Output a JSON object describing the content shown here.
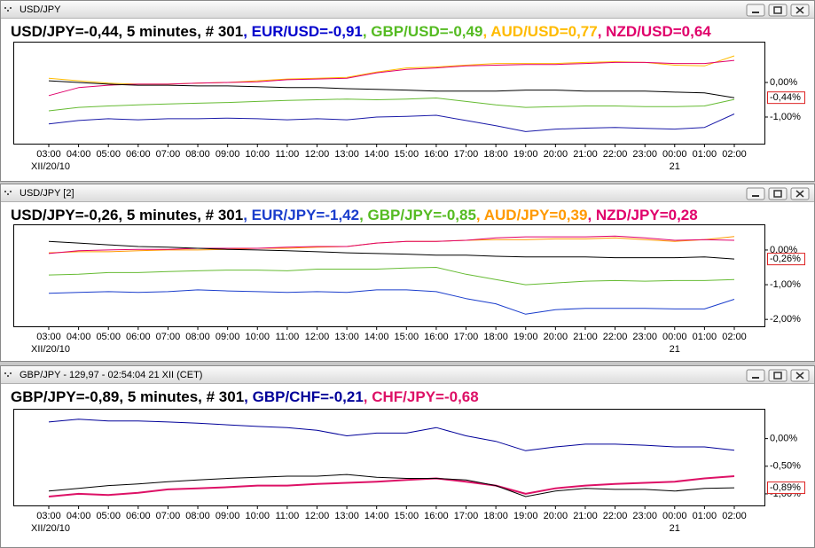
{
  "chart_data": [
    {
      "type": "line",
      "window_title": "USD/JPY",
      "title_parts": [
        {
          "text": "USD/JPY=-0,44, 5 minutes, # 301",
          "color": "#000000"
        },
        {
          "text": ", EUR/USD=-0,91",
          "color": "#0000cc"
        },
        {
          "text": ", GBP/USD=-0,49",
          "color": "#55bb22"
        },
        {
          "text": ", AUD/USD=0,77",
          "color": "#ffbb00"
        },
        {
          "text": ", NZD/USD=0,64",
          "color": "#e0006b"
        }
      ],
      "categories": [
        "03:00",
        "04:00",
        "05:00",
        "06:00",
        "07:00",
        "08:00",
        "09:00",
        "10:00",
        "11:00",
        "12:00",
        "13:00",
        "14:00",
        "15:00",
        "16:00",
        "17:00",
        "18:00",
        "19:00",
        "20:00",
        "21:00",
        "22:00",
        "23:00",
        "00:00",
        "01:00",
        "02:00"
      ],
      "x_sublabels": [
        "XII/20/10",
        null,
        null,
        null,
        null,
        null,
        null,
        null,
        null,
        null,
        null,
        null,
        null,
        null,
        null,
        null,
        null,
        null,
        null,
        null,
        null,
        "21",
        null,
        null
      ],
      "series": [
        {
          "color": "#000000",
          "width": 1,
          "values": [
            0.05,
            0.0,
            -0.05,
            -0.08,
            -0.08,
            -0.1,
            -0.1,
            -0.12,
            -0.15,
            -0.15,
            -0.18,
            -0.2,
            -0.22,
            -0.25,
            -0.25,
            -0.25,
            -0.22,
            -0.22,
            -0.25,
            -0.25,
            -0.25,
            -0.28,
            -0.3,
            -0.44
          ]
        },
        {
          "color": "#1a1aa8",
          "width": 1,
          "values": [
            -1.2,
            -1.1,
            -1.05,
            -1.08,
            -1.05,
            -1.05,
            -1.03,
            -1.05,
            -1.08,
            -1.05,
            -1.08,
            -1.0,
            -0.98,
            -0.95,
            -1.1,
            -1.25,
            -1.42,
            -1.35,
            -1.32,
            -1.3,
            -1.33,
            -1.35,
            -1.3,
            -0.91
          ]
        },
        {
          "color": "#66bb33",
          "width": 1,
          "values": [
            -0.82,
            -0.72,
            -0.68,
            -0.65,
            -0.62,
            -0.6,
            -0.58,
            -0.55,
            -0.52,
            -0.5,
            -0.48,
            -0.5,
            -0.48,
            -0.45,
            -0.55,
            -0.65,
            -0.72,
            -0.7,
            -0.68,
            -0.68,
            -0.7,
            -0.7,
            -0.68,
            -0.49
          ]
        },
        {
          "color": "#ffbb00",
          "width": 1,
          "values": [
            0.12,
            0.05,
            -0.02,
            -0.05,
            -0.05,
            -0.02,
            0.0,
            0.05,
            0.1,
            0.12,
            0.15,
            0.3,
            0.42,
            0.45,
            0.5,
            0.55,
            0.55,
            0.55,
            0.58,
            0.6,
            0.58,
            0.5,
            0.48,
            0.77
          ]
        },
        {
          "color": "#e0006b",
          "width": 1,
          "values": [
            -0.38,
            -0.15,
            -0.08,
            -0.05,
            -0.05,
            -0.02,
            0.0,
            0.02,
            0.08,
            0.1,
            0.12,
            0.28,
            0.38,
            0.42,
            0.48,
            0.5,
            0.52,
            0.52,
            0.55,
            0.58,
            0.58,
            0.55,
            0.55,
            0.64
          ]
        }
      ],
      "ylim": [
        -1.77,
        1.18
      ],
      "yticks": [
        {
          "value": 0,
          "label": "0,00%"
        },
        {
          "value": -1,
          "label": "-1,00%"
        }
      ],
      "last_label": "-0,44%"
    },
    {
      "type": "line",
      "window_title": "USD/JPY [2]",
      "title_parts": [
        {
          "text": "USD/JPY=-0,26, 5 minutes, # 301",
          "color": "#000000"
        },
        {
          "text": ", EUR/JPY=-1,42",
          "color": "#1a3dcc"
        },
        {
          "text": ", GBP/JPY=-0,85",
          "color": "#55bb22"
        },
        {
          "text": ", AUD/JPY=0,39",
          "color": "#ff9900"
        },
        {
          "text": ", NZD/JPY=0,28",
          "color": "#e0006b"
        }
      ],
      "categories": [
        "03:00",
        "04:00",
        "05:00",
        "06:00",
        "07:00",
        "08:00",
        "09:00",
        "10:00",
        "11:00",
        "12:00",
        "13:00",
        "14:00",
        "15:00",
        "16:00",
        "17:00",
        "18:00",
        "19:00",
        "20:00",
        "21:00",
        "22:00",
        "23:00",
        "00:00",
        "01:00",
        "02:00"
      ],
      "x_sublabels": [
        "XII/20/10",
        null,
        null,
        null,
        null,
        null,
        null,
        null,
        null,
        null,
        null,
        null,
        null,
        null,
        null,
        null,
        null,
        null,
        null,
        null,
        null,
        "21",
        null,
        null
      ],
      "series": [
        {
          "color": "#000000",
          "width": 1,
          "values": [
            0.25,
            0.2,
            0.15,
            0.1,
            0.08,
            0.05,
            0.02,
            0.0,
            -0.02,
            -0.05,
            -0.08,
            -0.1,
            -0.12,
            -0.15,
            -0.15,
            -0.18,
            -0.2,
            -0.2,
            -0.2,
            -0.22,
            -0.22,
            -0.22,
            -0.2,
            -0.26
          ]
        },
        {
          "color": "#1a3dcc",
          "width": 1,
          "values": [
            -1.25,
            -1.22,
            -1.2,
            -1.22,
            -1.2,
            -1.15,
            -1.18,
            -1.2,
            -1.22,
            -1.2,
            -1.22,
            -1.15,
            -1.15,
            -1.2,
            -1.4,
            -1.55,
            -1.85,
            -1.72,
            -1.68,
            -1.68,
            -1.68,
            -1.7,
            -1.7,
            -1.42
          ]
        },
        {
          "color": "#66bb33",
          "width": 1,
          "values": [
            -0.72,
            -0.7,
            -0.65,
            -0.65,
            -0.62,
            -0.6,
            -0.58,
            -0.58,
            -0.6,
            -0.55,
            -0.55,
            -0.55,
            -0.52,
            -0.5,
            -0.7,
            -0.85,
            -1.0,
            -0.95,
            -0.9,
            -0.88,
            -0.9,
            -0.88,
            -0.88,
            -0.85
          ]
        },
        {
          "color": "#ff9900",
          "width": 1,
          "values": [
            -0.08,
            -0.05,
            -0.05,
            -0.02,
            0.0,
            0.0,
            0.02,
            0.05,
            0.05,
            0.08,
            0.1,
            0.2,
            0.25,
            0.25,
            0.28,
            0.3,
            0.3,
            0.32,
            0.32,
            0.35,
            0.3,
            0.25,
            0.3,
            0.39
          ]
        },
        {
          "color": "#e0006b",
          "width": 1,
          "values": [
            -0.1,
            -0.02,
            0.0,
            0.02,
            0.02,
            0.05,
            0.05,
            0.05,
            0.08,
            0.1,
            0.1,
            0.2,
            0.25,
            0.25,
            0.28,
            0.35,
            0.38,
            0.38,
            0.38,
            0.4,
            0.35,
            0.28,
            0.3,
            0.28
          ]
        }
      ],
      "ylim": [
        -2.2,
        0.74
      ],
      "yticks": [
        {
          "value": 0,
          "label": "0,00%"
        },
        {
          "value": -1,
          "label": "-1,00%"
        },
        {
          "value": -2,
          "label": "-2,00%"
        }
      ],
      "last_label": "-0,26%"
    },
    {
      "type": "line",
      "window_title": "GBP/JPY - 129,97 - 02:54:04  21 XII (CET)",
      "title_parts": [
        {
          "text": "GBP/JPY=-0,89, 5 minutes, # 301",
          "color": "#000000"
        },
        {
          "text": ", GBP/CHF=-0,21",
          "color": "#000099"
        },
        {
          "text": ", CHF/JPY=-0,68",
          "color": "#dd1166"
        }
      ],
      "categories": [
        "03:00",
        "04:00",
        "05:00",
        "06:00",
        "07:00",
        "08:00",
        "09:00",
        "10:00",
        "11:00",
        "12:00",
        "13:00",
        "14:00",
        "15:00",
        "16:00",
        "17:00",
        "18:00",
        "19:00",
        "20:00",
        "21:00",
        "22:00",
        "23:00",
        "00:00",
        "01:00",
        "02:00"
      ],
      "x_sublabels": [
        "XII/20/10",
        null,
        null,
        null,
        null,
        null,
        null,
        null,
        null,
        null,
        null,
        null,
        null,
        null,
        null,
        null,
        null,
        null,
        null,
        null,
        null,
        "21",
        null,
        null
      ],
      "series": [
        {
          "color": "#000000",
          "width": 1,
          "values": [
            -0.95,
            -0.9,
            -0.85,
            -0.82,
            -0.78,
            -0.75,
            -0.72,
            -0.7,
            -0.68,
            -0.68,
            -0.65,
            -0.7,
            -0.72,
            -0.72,
            -0.75,
            -0.85,
            -1.05,
            -0.95,
            -0.9,
            -0.92,
            -0.92,
            -0.95,
            -0.9,
            -0.89
          ]
        },
        {
          "color": "#000099",
          "width": 1,
          "values": [
            0.3,
            0.35,
            0.32,
            0.32,
            0.3,
            0.28,
            0.25,
            0.22,
            0.2,
            0.15,
            0.05,
            0.1,
            0.1,
            0.2,
            0.05,
            -0.05,
            -0.22,
            -0.15,
            -0.1,
            -0.1,
            -0.12,
            -0.15,
            -0.15,
            -0.21
          ]
        },
        {
          "color": "#dd1166",
          "width": 2,
          "values": [
            -1.05,
            -1.0,
            -1.02,
            -0.98,
            -0.92,
            -0.9,
            -0.88,
            -0.85,
            -0.85,
            -0.82,
            -0.8,
            -0.78,
            -0.75,
            -0.72,
            -0.78,
            -0.85,
            -1.0,
            -0.9,
            -0.85,
            -0.82,
            -0.8,
            -0.78,
            -0.72,
            -0.68
          ]
        }
      ],
      "ylim": [
        -1.21,
        0.54
      ],
      "yticks": [
        {
          "value": 0,
          "label": "0,00%"
        },
        {
          "value": -0.5,
          "label": "-0,50%"
        },
        {
          "value": -1,
          "label": "-1,00%"
        }
      ],
      "last_label": "-0,89%"
    }
  ]
}
